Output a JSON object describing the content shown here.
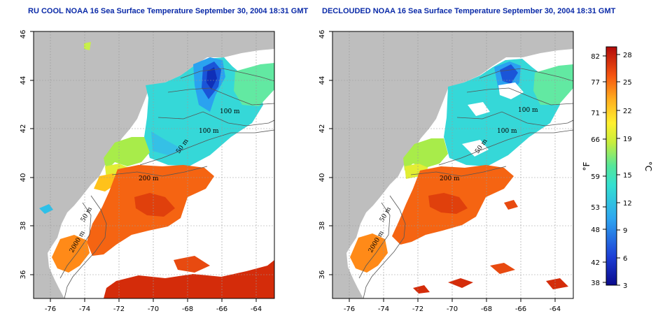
{
  "panels": [
    {
      "id": "left",
      "title": "RU COOL NOAA 16 Sea Surface Temperature September 30, 2004 18:31 GMT",
      "variant": "raw"
    },
    {
      "id": "right",
      "title": "DECLOUDED NOAA 16 Sea Surface Temperature September 30, 2004 18:31 GMT",
      "variant": "declouded"
    }
  ],
  "axes": {
    "lon_ticks": [
      "-76",
      "-74",
      "-72",
      "-70",
      "-68",
      "-66",
      "-64"
    ],
    "lat_ticks": [
      "36",
      "38",
      "40",
      "42",
      "44",
      "46"
    ],
    "lon_range": [
      -77.2,
      -62.9
    ],
    "lat_range": [
      35.0,
      46.0
    ]
  },
  "isobath_labels": [
    "100 m",
    "100 m",
    "50 m",
    "200 m",
    "50 m",
    "2000 m"
  ],
  "colorbar": {
    "fahrenheit_unit": "°F",
    "celsius_unit": "°C",
    "fahrenheit_ticks": [
      "82",
      "77",
      "71",
      "66",
      "59",
      "53",
      "48",
      "42",
      "38"
    ],
    "celsius_ticks": [
      "28",
      "25",
      "22",
      "19",
      "15",
      "12",
      "9",
      "6",
      "3"
    ],
    "range_c": [
      3,
      29
    ]
  },
  "colors": {
    "land": "#bebebe",
    "ocean_no_data": "#ffffff",
    "grid": "#9a9a9a",
    "title": "#0a2aa8"
  }
}
